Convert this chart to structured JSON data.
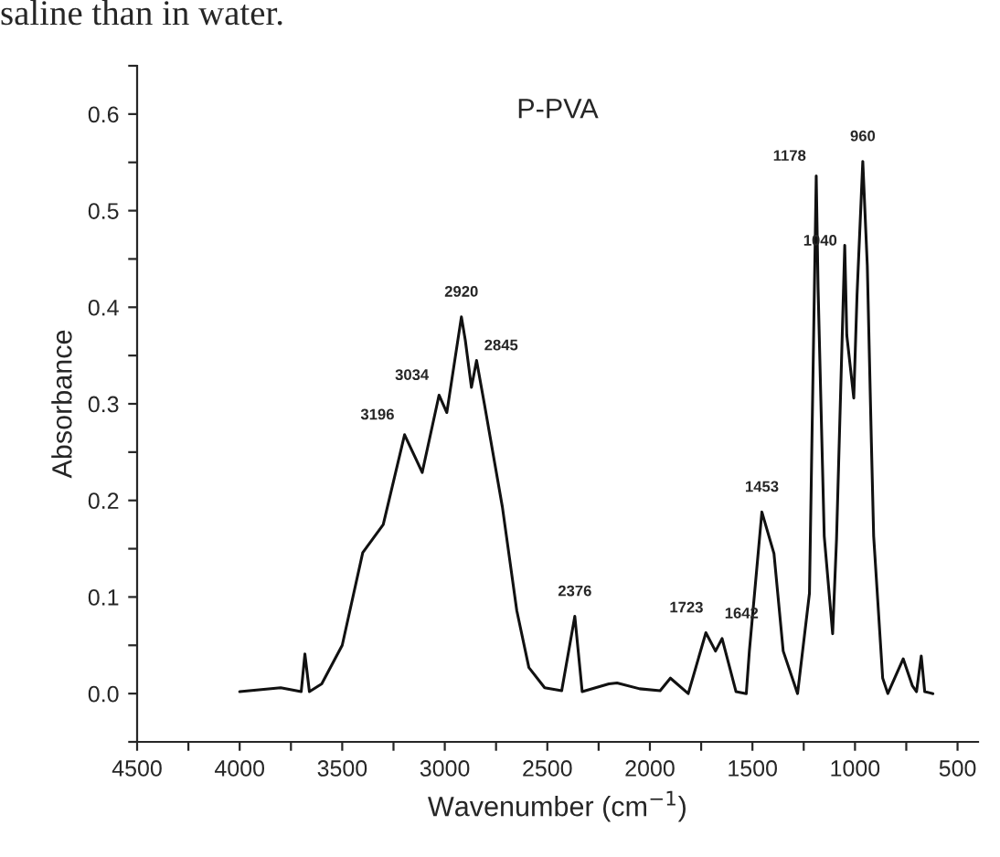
{
  "chart_data": {
    "type": "line",
    "title": "P-PVA",
    "xlabel": "Wavenumber (cm$^{−1}$)",
    "ylabel": "Absorbance",
    "x": [
      4000,
      3800,
      3700,
      3682,
      3660,
      3600,
      3500,
      3400,
      3300,
      3196,
      3110,
      3028,
      2990,
      2919,
      2900,
      2870,
      2845,
      2807,
      2719,
      2649,
      2590,
      2513,
      2430,
      2366,
      2330,
      2200,
      2160,
      2050,
      1950,
      1900,
      1813,
      1727,
      1680,
      1648,
      1580,
      1530,
      1515,
      1454,
      1395,
      1350,
      1280,
      1222,
      1189,
      1180,
      1150,
      1109,
      1090,
      1050,
      1040,
      1006,
      990,
      962,
      940,
      920,
      909,
      865,
      840,
      765,
      720,
      700,
      677,
      660,
      620
    ],
    "series": [
      {
        "color": "#111111",
        "values": [
          0.002,
          0.006,
          0.002,
          0.041,
          0.002,
          0.01,
          0.05,
          0.146,
          0.175,
          0.268,
          0.229,
          0.309,
          0.291,
          0.39,
          0.366,
          0.317,
          0.345,
          0.3,
          0.193,
          0.086,
          0.027,
          0.006,
          0.003,
          0.08,
          0.002,
          0.01,
          0.011,
          0.005,
          0.003,
          0.016,
          0.0,
          0.063,
          0.044,
          0.057,
          0.002,
          0.0,
          0.044,
          0.188,
          0.145,
          0.044,
          0.0,
          0.104,
          0.536,
          0.42,
          0.163,
          0.062,
          0.16,
          0.464,
          0.371,
          0.306,
          0.413,
          0.551,
          0.443,
          0.259,
          0.163,
          0.016,
          0.0,
          0.036,
          0.008,
          0.002,
          0.039,
          0.002,
          0.0
        ]
      }
    ],
    "xlim": [
      4500,
      400
    ],
    "ylim": [
      -0.05,
      0.65
    ],
    "xticks": [
      4500,
      {
        "value": 4250,
        "label": null
      },
      4000,
      {
        "value": 3750,
        "label": null
      },
      3500,
      {
        "value": 3250,
        "label": null
      },
      3000,
      {
        "value": 2750,
        "label": null
      },
      2500,
      {
        "value": 2250,
        "label": null
      },
      2000,
      {
        "value": 1750,
        "label": null
      },
      1500,
      {
        "value": 1250,
        "label": null
      },
      1000,
      {
        "value": 750,
        "label": null
      },
      500
    ],
    "yticks": [
      {
        "value": -0.05,
        "label": null
      },
      {
        "value": 0,
        "label": "0.0"
      },
      {
        "value": 0.05,
        "label": null
      },
      0.1,
      {
        "value": 0.15,
        "label": null
      },
      0.2,
      {
        "value": 0.25,
        "label": null
      },
      0.3,
      {
        "value": 0.35,
        "label": null
      },
      0.4,
      {
        "value": 0.45,
        "label": null
      },
      0.5,
      {
        "value": 0.55,
        "label": null
      },
      0.6,
      {
        "value": 0.65,
        "label": null
      }
    ],
    "grid": false,
    "legend": false,
    "marker": "none",
    "line_style": "solid",
    "annotations": [
      "saline than in water.",
      {
        "text": "3196",
        "x": 3196,
        "y": 0.268
      },
      {
        "text": "3034",
        "x": 3028,
        "y": 0.309
      },
      {
        "text": "2920",
        "x": 2919,
        "y": 0.39
      },
      {
        "text": "2845",
        "x": 2845,
        "y": 0.345
      },
      {
        "text": "2376",
        "x": 2366,
        "y": 0.08
      },
      {
        "text": "1723",
        "x": 1727,
        "y": 0.063
      },
      {
        "text": "1642",
        "x": 1648,
        "y": 0.057
      },
      {
        "text": "1453",
        "x": 1454,
        "y": 0.188
      },
      {
        "text": "1178",
        "x": 1189,
        "y": 0.536
      },
      {
        "text": "1040",
        "x": 1050,
        "y": 0.464
      },
      {
        "text": "960",
        "x": 962,
        "y": 0.551
      }
    ]
  }
}
